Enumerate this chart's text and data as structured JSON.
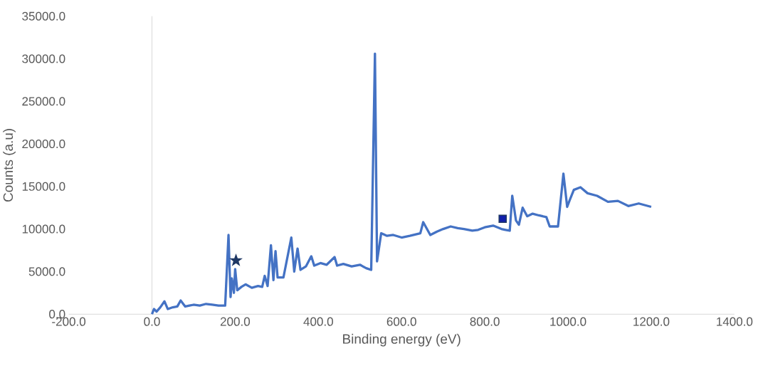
{
  "chart_data": {
    "type": "line",
    "xlabel": "Binding energy (eV)",
    "ylabel": "Counts (a.u)",
    "xlim": [
      -200,
      1400
    ],
    "ylim": [
      0,
      35000
    ],
    "xticks": [
      {
        "value": -200,
        "label": "-200.0"
      },
      {
        "value": 0,
        "label": "0.0"
      },
      {
        "value": 200,
        "label": "200.0"
      },
      {
        "value": 400,
        "label": "400.0"
      },
      {
        "value": 600,
        "label": "600.0"
      },
      {
        "value": 800,
        "label": "800.0"
      },
      {
        "value": 1000,
        "label": "1000.0"
      },
      {
        "value": 1200,
        "label": "1200.0"
      },
      {
        "value": 1400,
        "label": "1400.0"
      }
    ],
    "yticks": [
      {
        "value": 0,
        "label": "0.0"
      },
      {
        "value": 5000,
        "label": "5000.0"
      },
      {
        "value": 10000,
        "label": "10000.0"
      },
      {
        "value": 15000,
        "label": "15000.0"
      },
      {
        "value": 20000,
        "label": "20000.0"
      },
      {
        "value": 25000,
        "label": "25000.0"
      },
      {
        "value": 30000,
        "label": "30000.0"
      },
      {
        "value": 35000,
        "label": "35000.0"
      }
    ],
    "marker": "none",
    "line_style": "solid",
    "series": [
      {
        "color": "#4472c4",
        "x": [
          0,
          5,
          11,
          20,
          30,
          38,
          50,
          61,
          69,
          80,
          90,
          100,
          115,
          130,
          145,
          160,
          176,
          184,
          189,
          192,
          197,
          200,
          205,
          215,
          225,
          240,
          255,
          265,
          271,
          278,
          286,
          292,
          297,
          302,
          316,
          335,
          342,
          350,
          357,
          370,
          383,
          390,
          405,
          420,
          439,
          445,
          460,
          480,
          500,
          515,
          527,
          536,
          541,
          551,
          565,
          580,
          600,
          620,
          645,
          652,
          669,
          685,
          700,
          718,
          735,
          750,
          770,
          784,
          800,
          820,
          840,
          850,
          860,
          866,
          875,
          882,
          891,
          902,
          915,
          930,
          948,
          956,
          976,
          989,
          998,
          1005,
          1014,
          1030,
          1047,
          1070,
          1096,
          1120,
          1145,
          1170,
          1200
        ],
        "values": [
          0,
          600,
          300,
          800,
          1500,
          600,
          800,
          900,
          1600,
          900,
          1000,
          1100,
          1000,
          1200,
          1100,
          1000,
          1000,
          9300,
          2000,
          4200,
          2500,
          5300,
          2800,
          3200,
          3500,
          3100,
          3300,
          3200,
          4500,
          3300,
          8100,
          4000,
          7400,
          4300,
          4300,
          9000,
          5000,
          7700,
          5200,
          5600,
          6800,
          5700,
          6000,
          5800,
          6700,
          5700,
          5900,
          5600,
          5800,
          5400,
          5200,
          30600,
          6200,
          9500,
          9200,
          9300,
          9000,
          9200,
          9500,
          10800,
          9300,
          9700,
          10000,
          10300,
          10100,
          10000,
          9800,
          9900,
          10200,
          10400,
          10000,
          9900,
          9800,
          13900,
          11000,
          10500,
          12500,
          11500,
          11800,
          11600,
          11400,
          10300,
          10300,
          16500,
          12600,
          13500,
          14600,
          14900,
          14200,
          13900,
          13200,
          13300,
          12700,
          13000,
          12600
        ]
      },
      {
        "type": "scatter",
        "marker": "star",
        "color": "#1f3864",
        "x": [
          202
        ],
        "values": [
          6300
        ]
      },
      {
        "type": "scatter",
        "marker": "square",
        "color": "#1f3864",
        "x": [
          843
        ],
        "values": [
          11200
        ]
      }
    ]
  }
}
